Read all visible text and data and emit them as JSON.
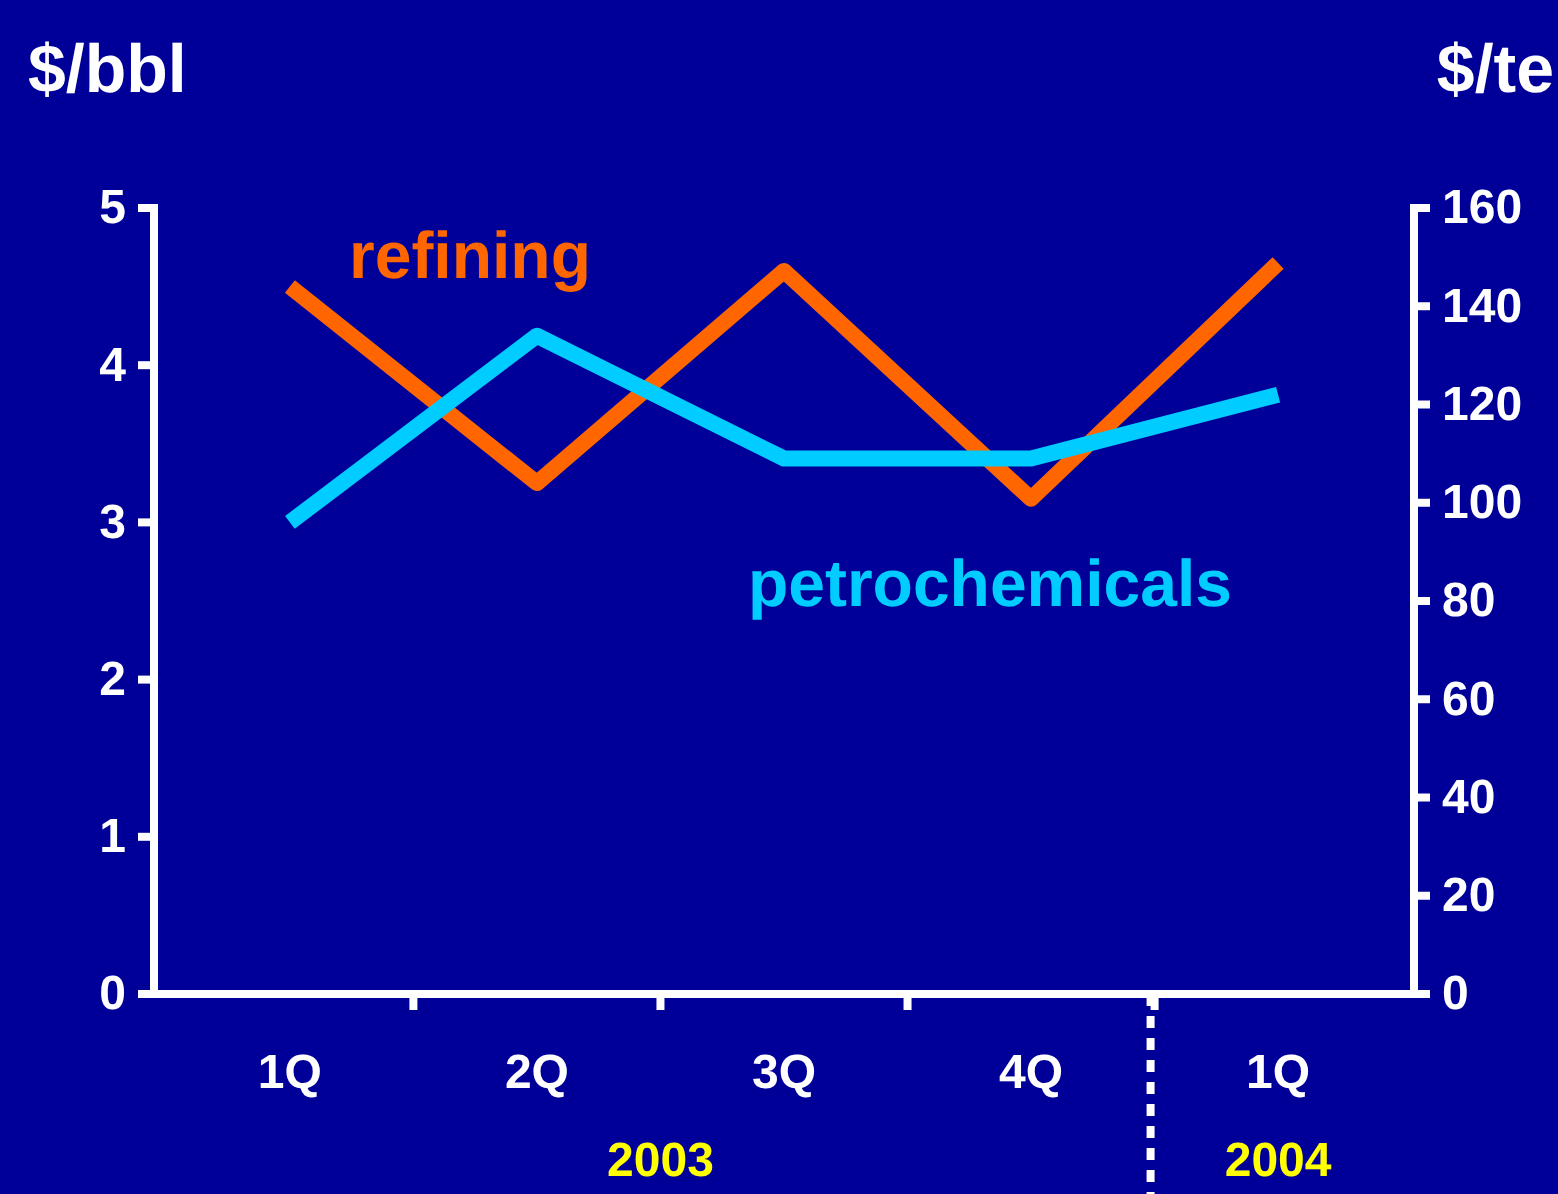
{
  "chart_data": {
    "type": "line",
    "ylabel": "$/bbl",
    "y2label": "$/te",
    "categories": [
      "1Q",
      "2Q",
      "3Q",
      "4Q",
      "1Q"
    ],
    "series": [
      {
        "name": "refining",
        "color": "#ff6600",
        "values": [
          4.5,
          3.25,
          4.6,
          3.15,
          4.65
        ]
      },
      {
        "name": "petrochemicals",
        "color": "#00ccff",
        "axis": "y2",
        "values": [
          96,
          134,
          109,
          109,
          122
        ]
      }
    ],
    "ylim": [
      0,
      5
    ],
    "yticks": [
      0,
      1,
      2,
      3,
      4,
      5
    ],
    "y2lim": [
      0,
      160
    ],
    "y2ticks": [
      0,
      20,
      40,
      60,
      80,
      100,
      120,
      140,
      160
    ],
    "annotations": [
      "2003",
      "2004"
    ],
    "grid": false,
    "marker": "none",
    "line_style": "solid"
  }
}
